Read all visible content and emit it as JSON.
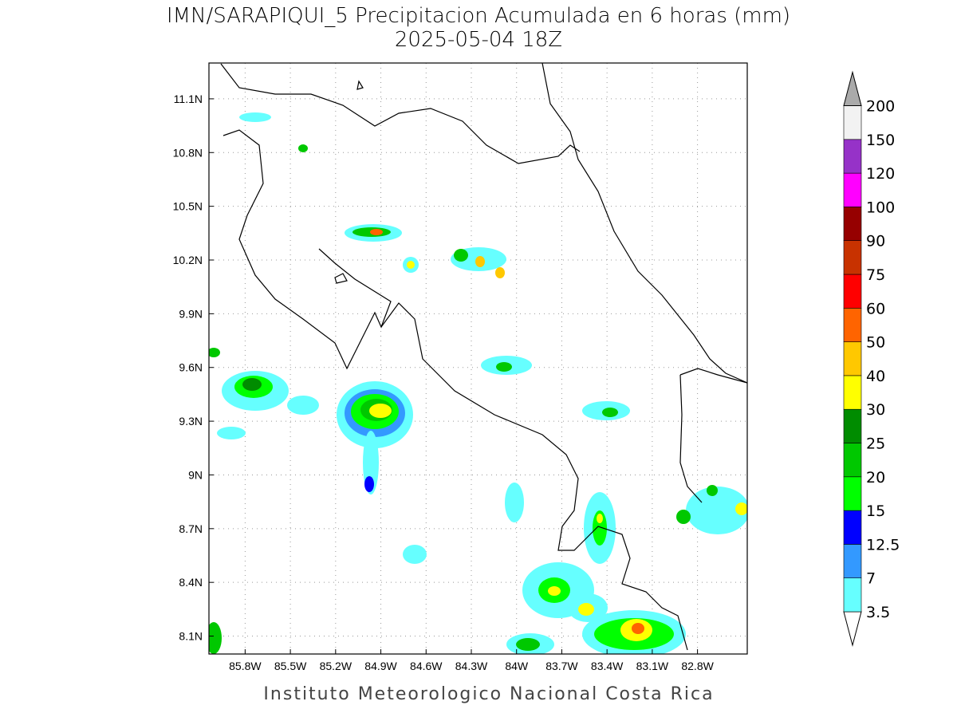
{
  "title": "IMN/SARAPIQUI_5 Precipitacion Acumulada en 6 horas (mm)",
  "subtitle": "2025-05-04 18Z",
  "footer": "Instituto Meteorologico Nacional Costa Rica",
  "map": {
    "xlim": [
      -86.04,
      -82.47
    ],
    "ylim": [
      8.0,
      11.3
    ],
    "grid": true,
    "xticks": [
      {
        "value": -85.8,
        "label": "85.8W"
      },
      {
        "value": -85.5,
        "label": "85.5W"
      },
      {
        "value": -85.2,
        "label": "85.2W"
      },
      {
        "value": -84.9,
        "label": "84.9W"
      },
      {
        "value": -84.6,
        "label": "84.6W"
      },
      {
        "value": -84.3,
        "label": "84.3W"
      },
      {
        "value": -84.0,
        "label": "84W"
      },
      {
        "value": -83.7,
        "label": "83.7W"
      },
      {
        "value": -83.4,
        "label": "83.4W"
      },
      {
        "value": -83.1,
        "label": "83.1W"
      },
      {
        "value": -82.8,
        "label": "82.8W"
      }
    ],
    "yticks": [
      {
        "value": 11.1,
        "label": "11.1N"
      },
      {
        "value": 10.8,
        "label": "10.8N"
      },
      {
        "value": 10.5,
        "label": "10.5N"
      },
      {
        "value": 10.2,
        "label": "10.2N"
      },
      {
        "value": 9.9,
        "label": "9.9N"
      },
      {
        "value": 9.6,
        "label": "9.6N"
      },
      {
        "value": 9.3,
        "label": "9.3N"
      },
      {
        "value": 9.0,
        "label": "9N"
      },
      {
        "value": 8.7,
        "label": "8.7N"
      },
      {
        "value": 8.4,
        "label": "8.4N"
      },
      {
        "value": 8.1,
        "label": "8.1N"
      }
    ]
  },
  "colorbar": {
    "levels": [
      3.5,
      7,
      12.5,
      15,
      20,
      25,
      30,
      40,
      50,
      60,
      75,
      90,
      100,
      120,
      150,
      200
    ],
    "colors": [
      "#ffffff",
      "#66ffff",
      "#3399ff",
      "#0000ff",
      "#00ff00",
      "#00c800",
      "#008c00",
      "#ffff00",
      "#ffc800",
      "#ff6400",
      "#ff0000",
      "#c83200",
      "#960000",
      "#ff00ff",
      "#9632c8",
      "#f2f2f2",
      "#aaaaaa"
    ]
  }
}
